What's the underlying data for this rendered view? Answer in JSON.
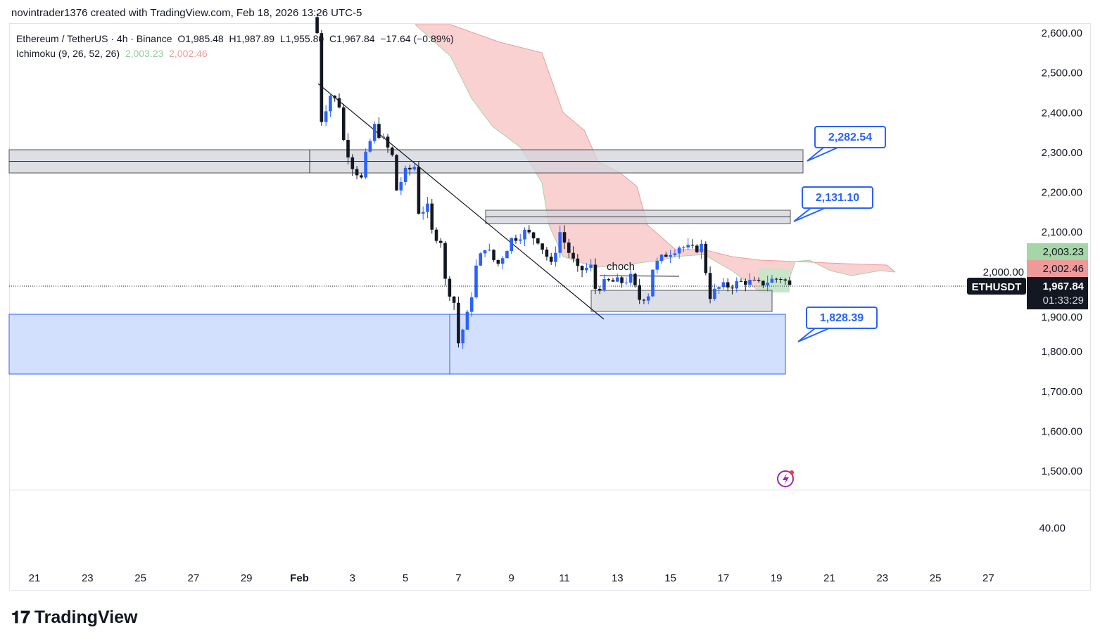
{
  "credit": "novintrader1376 created with TradingView.com, Feb 18, 2026 13:26 UTC-5",
  "legend": {
    "symbol": "Ethereum / TetherUS · 4h · Binance",
    "open": "O1,985.48",
    "high": "H1,987.89",
    "low": "L1,955.80",
    "close": "C1,967.84",
    "change": "−17.64 (−0.89%)",
    "indicator": "Ichimoku (9, 26, 52, 26)",
    "ind_v1": "2,003.23",
    "ind_v2": "2,002.46"
  },
  "logo": "TradingView",
  "chart_data": {
    "type": "candlestick",
    "price_ticks": [
      "2,600.00",
      "2,500.00",
      "2,400.00",
      "2,300.00",
      "2,200.00",
      "2,100.00",
      "2,000.00",
      "1,900.00",
      "1,800.00",
      "1,700.00",
      "1,600.00",
      "1,500.00"
    ],
    "price_range": [
      1490,
      2620
    ],
    "time_ticks": [
      "21",
      "23",
      "25",
      "27",
      "29",
      "Feb",
      "3",
      "5",
      "7",
      "9",
      "11",
      "13",
      "15",
      "17",
      "19",
      "21",
      "23",
      "25",
      "27"
    ],
    "indicator_pane_tick": "40.00",
    "close_path": [
      [
        "2026-01-31T16:00",
        2600
      ],
      [
        "2026-01-31T20:00",
        2383
      ],
      [
        "2026-02-01T04:00",
        2445
      ],
      [
        "2026-02-01T12:00",
        2420
      ],
      [
        "2026-02-01T16:00",
        2330
      ],
      [
        "2026-02-02T00:00",
        2268
      ],
      [
        "2026-02-02T08:00",
        2233
      ],
      [
        "2026-02-02T12:00",
        2290
      ],
      [
        "2026-02-02T20:00",
        2365
      ],
      [
        "2026-02-03T04:00",
        2330
      ],
      [
        "2026-02-03T12:00",
        2290
      ],
      [
        "2026-02-03T16:00",
        2206
      ],
      [
        "2026-02-04T00:00",
        2250
      ],
      [
        "2026-02-04T08:00",
        2265
      ],
      [
        "2026-02-04T12:00",
        2153
      ],
      [
        "2026-02-04T20:00",
        2160
      ],
      [
        "2026-02-05T00:00",
        2100
      ],
      [
        "2026-02-05T08:00",
        2080
      ],
      [
        "2026-02-05T12:00",
        1977
      ],
      [
        "2026-02-05T20:00",
        1924
      ],
      [
        "2026-02-06T00:00",
        1822
      ],
      [
        "2026-02-06T08:00",
        1890
      ],
      [
        "2026-02-06T12:00",
        1945
      ],
      [
        "2026-02-06T16:00",
        2012
      ],
      [
        "2026-02-07T00:00",
        2065
      ],
      [
        "2026-02-07T08:00",
        2030
      ],
      [
        "2026-02-07T12:00",
        2021
      ],
      [
        "2026-02-08T00:00",
        2082
      ],
      [
        "2026-02-08T12:00",
        2100
      ],
      [
        "2026-02-09T00:00",
        2082
      ],
      [
        "2026-02-09T08:00",
        2040
      ],
      [
        "2026-02-09T12:00",
        2015
      ],
      [
        "2026-02-09T20:00",
        2100
      ],
      [
        "2026-02-10T04:00",
        2050
      ],
      [
        "2026-02-10T12:00",
        2003
      ],
      [
        "2026-02-11T00:00",
        2012
      ],
      [
        "2026-02-11T04:00",
        1959
      ],
      [
        "2026-02-11T16:00",
        1975
      ],
      [
        "2026-02-12T04:00",
        1975
      ],
      [
        "2026-02-12T12:00",
        1985
      ],
      [
        "2026-02-12T20:00",
        1932
      ],
      [
        "2026-02-13T04:00",
        1945
      ],
      [
        "2026-02-13T08:00",
        2010
      ],
      [
        "2026-02-13T20:00",
        2045
      ],
      [
        "2026-02-14T08:00",
        2065
      ],
      [
        "2026-02-14T20:00",
        2055
      ],
      [
        "2026-02-15T04:00",
        2065
      ],
      [
        "2026-02-15T08:00",
        2003
      ],
      [
        "2026-02-15T12:00",
        1941
      ],
      [
        "2026-02-15T20:00",
        1960
      ],
      [
        "2026-02-16T08:00",
        1968
      ],
      [
        "2026-02-16T20:00",
        1977
      ],
      [
        "2026-02-17T08:00",
        1968
      ],
      [
        "2026-02-17T16:00",
        1977
      ],
      [
        "2026-02-18T04:00",
        1986
      ],
      [
        "2026-02-18T12:00",
        1967.84
      ]
    ],
    "last_price": {
      "symbol": "ETHUSDT",
      "price": "1,967.84",
      "countdown": "01:33:29"
    },
    "ichimoku_labels": [
      {
        "value": "2,003.23",
        "color": "#a5d6a7"
      },
      {
        "value": "2,002.46",
        "color": "#ef9a9a"
      }
    ],
    "callouts": [
      "2,282.54",
      "2,131.10",
      "1,828.39"
    ],
    "annotation": "choch",
    "colors": {
      "up": "#2962ff",
      "down": "#131722",
      "cloud_bear": "#f8c9c9",
      "cloud_bull": "#c8e6c9",
      "zone": "#d1d4dc",
      "demand": "#d3e0fd",
      "accent": "#2962ff"
    }
  }
}
